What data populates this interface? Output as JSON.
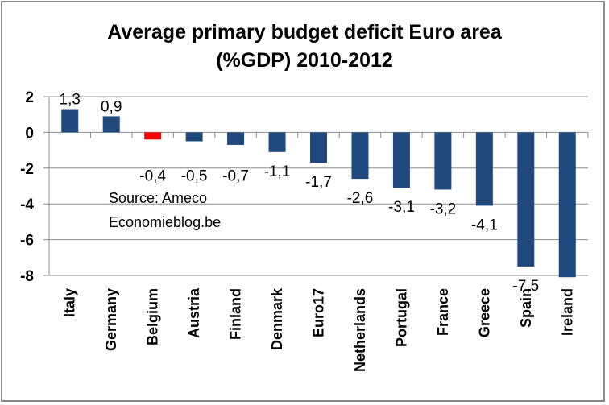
{
  "chart_data": {
    "type": "bar",
    "title": "Average primary budget deficit Euro area",
    "subtitle": "(%GDP) 2010-2012",
    "xlabel": "",
    "ylabel": "",
    "ylim": [
      -8,
      2
    ],
    "yticks": [
      2,
      0,
      -2,
      -4,
      -6,
      -8
    ],
    "grid": true,
    "legend": "none",
    "categories": [
      "Italy",
      "Germany",
      "Belgium",
      "Austria",
      "Finland",
      "Denmark",
      "Euro17",
      "Netherlands",
      "Portugal",
      "France",
      "Greece",
      "Spain",
      "Ireland"
    ],
    "values": [
      1.3,
      0.9,
      -0.4,
      -0.5,
      -0.7,
      -1.1,
      -1.7,
      -2.6,
      -3.1,
      -3.2,
      -4.1,
      -7.5,
      -8.1
    ],
    "data_labels": [
      "1,3",
      "0,9",
      "-0,4",
      "-0,5",
      "-0,7",
      "-1,1",
      "-1,7",
      "-2,6",
      "-3,1",
      "-3,2",
      "-4,1",
      "-7,5",
      ""
    ],
    "colors": {
      "default": "#1f497d",
      "highlight": "#ff0000",
      "highlight_category": "Belgium",
      "grid": "#8c8c8c"
    },
    "annotations": [
      "Source: Ameco",
      "Economieblog.be"
    ]
  }
}
